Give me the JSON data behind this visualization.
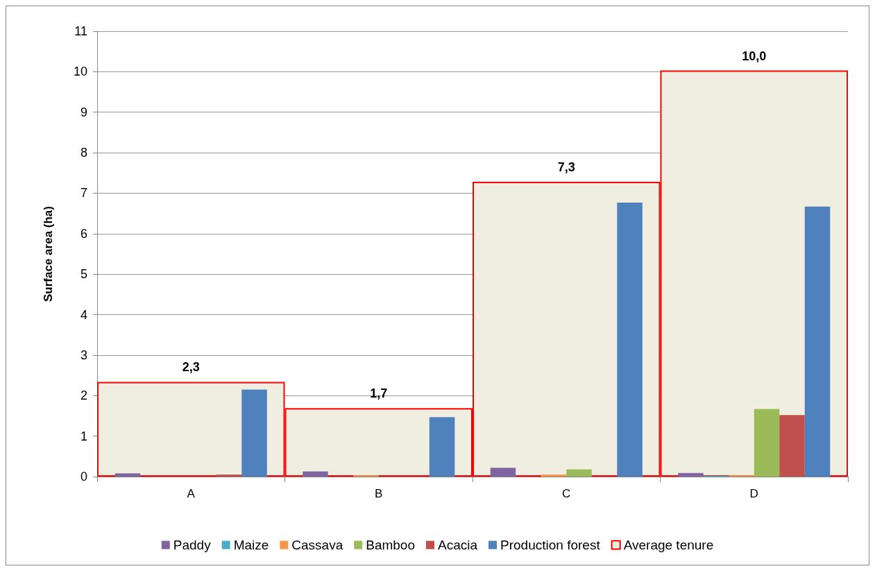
{
  "chart_data": {
    "type": "bar",
    "ylabel": "Surface area (ha)",
    "categories": [
      "A",
      "B",
      "C",
      "D"
    ],
    "ylim": [
      0,
      11
    ],
    "yticks": [
      0,
      1,
      2,
      3,
      4,
      5,
      6,
      7,
      8,
      9,
      10,
      11
    ],
    "grid": "y",
    "legend": "bottom",
    "series": [
      {
        "name": "Paddy",
        "color": "#8064a2",
        "values": [
          0.08,
          0.13,
          0.22,
          0.09
        ]
      },
      {
        "name": "Maize",
        "color": "#4bacc6",
        "values": [
          0,
          0,
          0,
          0.02
        ]
      },
      {
        "name": "Cassava",
        "color": "#f79646",
        "values": [
          0,
          0.03,
          0.05,
          0.03
        ]
      },
      {
        "name": "Bamboo",
        "color": "#9bbb59",
        "values": [
          0,
          0,
          0.18,
          1.67
        ]
      },
      {
        "name": "Acacia",
        "color": "#c0504d",
        "values": [
          0.05,
          0,
          0,
          1.52
        ]
      },
      {
        "name": "Production forest",
        "color": "#4f81bd",
        "values": [
          2.15,
          1.47,
          6.77,
          6.67
        ]
      },
      {
        "name": "Average tenure",
        "color": "#ff0000",
        "values": [
          2.34,
          1.69,
          7.28,
          10.03
        ],
        "value_labels": [
          "2,3",
          "1,7",
          "7,3",
          "10,0"
        ]
      }
    ]
  }
}
